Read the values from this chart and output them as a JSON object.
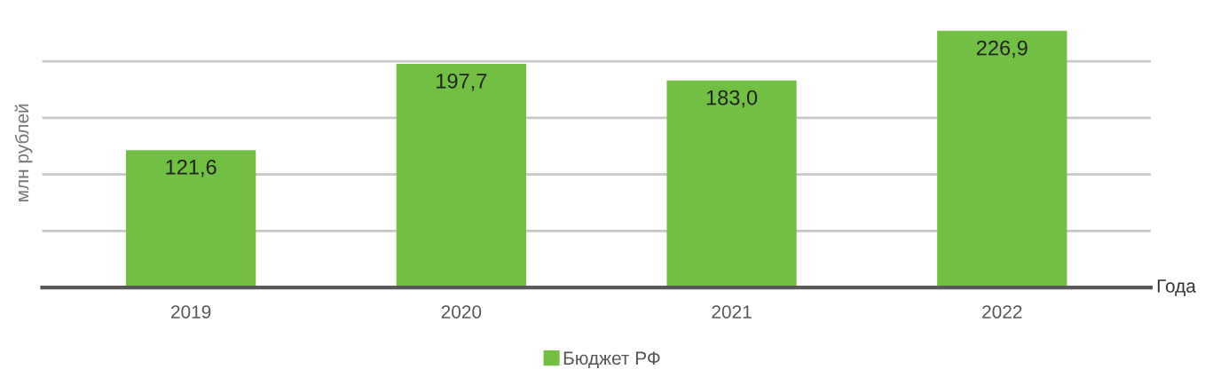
{
  "chart_data": {
    "type": "bar",
    "ylabel": "млн рублей",
    "xlabel": "Года",
    "categories": [
      "2019",
      "2020",
      "2021",
      "2022"
    ],
    "series": [
      {
        "name": "Бюджет РФ",
        "color": "#72bf44",
        "values": [
          121.6,
          197.7,
          183.0,
          226.9
        ],
        "value_labels": [
          "121,6",
          "197,7",
          "183,0",
          "226,9"
        ]
      }
    ],
    "tick_labels": "x",
    "grid": "y",
    "legend": "bottom"
  }
}
